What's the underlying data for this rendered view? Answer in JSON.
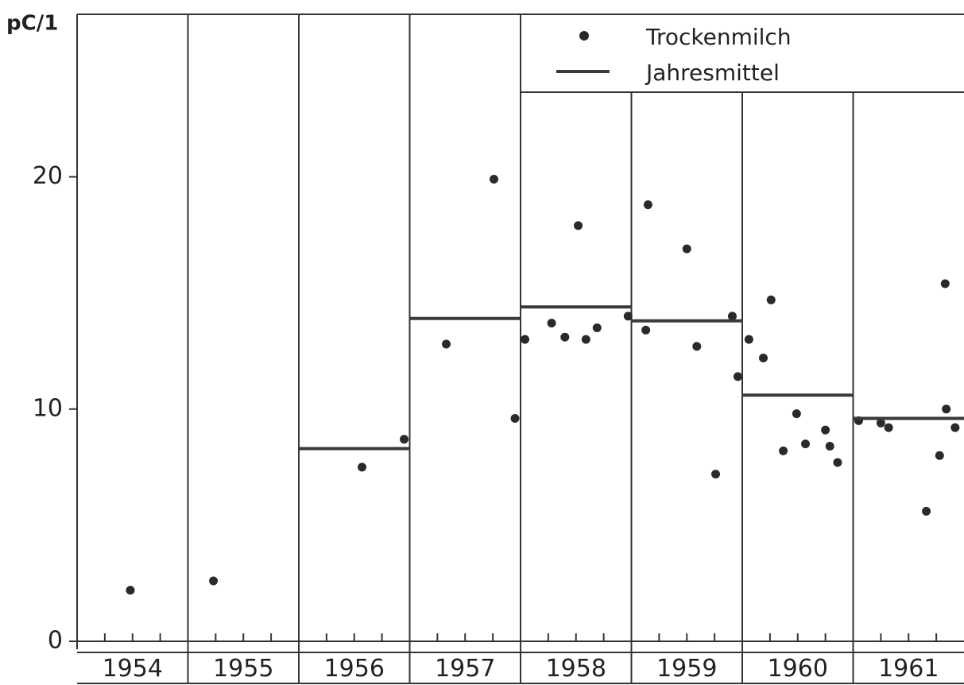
{
  "chart_data": {
    "type": "scatter",
    "y_label": "pC/1",
    "xlim": [
      1954,
      1962
    ],
    "ylim": [
      0,
      27
    ],
    "yticks": [
      0,
      10,
      20
    ],
    "xticks": [
      {
        "value": 1954.5,
        "label": "1954"
      },
      {
        "value": 1955.5,
        "label": "1955"
      },
      {
        "value": 1956.5,
        "label": "1956"
      },
      {
        "value": 1957.5,
        "label": "1957"
      },
      {
        "value": 1958.5,
        "label": "1958"
      },
      {
        "value": 1959.5,
        "label": "1959"
      },
      {
        "value": 1960.5,
        "label": "1960"
      },
      {
        "value": 1961.5,
        "label": "1961"
      }
    ],
    "legend": "top-right",
    "series": [
      {
        "name": "Trockenmilch",
        "color": "#2a2a2a",
        "x": [
          1954.48,
          1955.23,
          1956.57,
          1956.95,
          1957.33,
          1957.76,
          1957.95,
          1958.04,
          1958.28,
          1958.4,
          1958.52,
          1958.59,
          1958.69,
          1958.97,
          1959.13,
          1959.15,
          1959.5,
          1959.59,
          1959.76,
          1959.91,
          1959.96,
          1960.06,
          1960.19,
          1960.26,
          1960.37,
          1960.49,
          1960.57,
          1960.75,
          1960.79,
          1960.86,
          1961.05,
          1961.25,
          1961.32,
          1961.66,
          1961.78,
          1961.83,
          1961.84,
          1961.92
        ],
        "values": [
          2.2,
          2.6,
          7.5,
          8.7,
          12.8,
          19.9,
          9.6,
          13.0,
          13.7,
          13.1,
          17.9,
          13.0,
          13.5,
          14.0,
          13.4,
          18.8,
          16.9,
          12.7,
          7.2,
          14.0,
          11.4,
          13.0,
          12.2,
          14.7,
          8.2,
          9.8,
          8.5,
          9.1,
          8.4,
          7.7,
          9.5,
          9.4,
          9.2,
          5.6,
          8.0,
          15.4,
          10.0,
          9.2
        ]
      },
      {
        "name": "Jahresmittel",
        "color": "#3a3a3a",
        "type": "step",
        "x": [
          1956,
          1957,
          1958,
          1959,
          1960,
          1961
        ],
        "values": [
          8.3,
          13.9,
          14.4,
          13.8,
          10.6,
          9.6
        ]
      }
    ]
  }
}
